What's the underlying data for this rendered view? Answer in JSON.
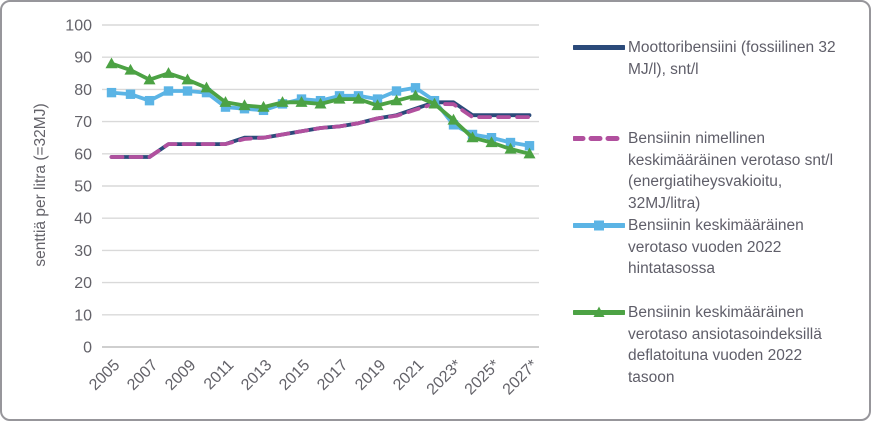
{
  "card": {
    "background": "#ffffff",
    "border_color": "#97969b"
  },
  "chart_data": {
    "type": "line",
    "title": "",
    "xlabel": "",
    "ylabel": "senttiä per litra (=32MJ)",
    "ylim": [
      0,
      100
    ],
    "ytick_step": 10,
    "ytick_labels": [
      "0",
      "10",
      "20",
      "30",
      "40",
      "50",
      "60",
      "70",
      "80",
      "90",
      "100"
    ],
    "x_years": [
      2005,
      2006,
      2007,
      2008,
      2009,
      2010,
      2011,
      2012,
      2013,
      2014,
      2015,
      2016,
      2017,
      2018,
      2019,
      2020,
      2021,
      2022,
      2023,
      2024,
      2025,
      2026,
      2027
    ],
    "xtick_labels": [
      "2005",
      "2007",
      "2009",
      "2011",
      "2013",
      "2015",
      "2017",
      "2019",
      "2021",
      "2023*",
      "2025*",
      "2027*"
    ],
    "xtick_every": 2,
    "grid": "horizontal",
    "legend_position": "right",
    "axis_colors": {
      "gridline": "#d9d9d9",
      "axis_line": "#bfbfbf",
      "tick_text": "#636269"
    },
    "series": [
      {
        "name": "Moottoribensiini (fossiilinen 32 MJ/l), snt/l",
        "color": "#2b4a7a",
        "line_style": "solid",
        "marker": "none",
        "values": [
          59,
          59,
          59,
          63,
          63,
          63,
          63,
          65,
          65,
          66,
          67,
          68,
          68.5,
          69.5,
          71,
          72,
          74,
          76,
          76,
          72,
          72,
          72,
          72
        ]
      },
      {
        "name": "Bensiinin nimellinen keskimääräinen verotaso snt/l (energiatiheysvakioitu, 32MJ/litra)",
        "color": "#b1509e",
        "line_style": "dashed",
        "marker": "none",
        "values": [
          59,
          59,
          59,
          63,
          63,
          63,
          63,
          64.6,
          65,
          66,
          67,
          68,
          68.5,
          69.5,
          71,
          71.8,
          73.7,
          75.5,
          75.4,
          71.4,
          71.4,
          71.4,
          71.4
        ]
      },
      {
        "name": "Bensiinin keskimääräinen verotaso vuoden 2022 hintatasossa",
        "color": "#5bb4e5",
        "line_style": "solid",
        "marker": "square",
        "values": [
          79,
          78.5,
          76.5,
          79.5,
          79.5,
          79,
          74.5,
          74,
          73.5,
          75.5,
          77,
          76.5,
          78,
          78,
          77,
          79.5,
          80.5,
          76.5,
          69,
          66,
          65,
          63.5,
          62.5
        ]
      },
      {
        "name": "Bensiinin keskimääräinen verotaso ansiotasoindeksillä deflatoituna vuoden 2022 tasoon",
        "color": "#4ca244",
        "line_style": "solid",
        "marker": "triangle",
        "values": [
          88,
          86,
          83,
          85,
          83,
          80.5,
          76,
          75,
          74.5,
          76,
          76,
          75.5,
          77,
          77,
          75,
          76.5,
          78,
          75.5,
          70.5,
          65,
          63.5,
          61.5,
          60
        ]
      }
    ]
  }
}
